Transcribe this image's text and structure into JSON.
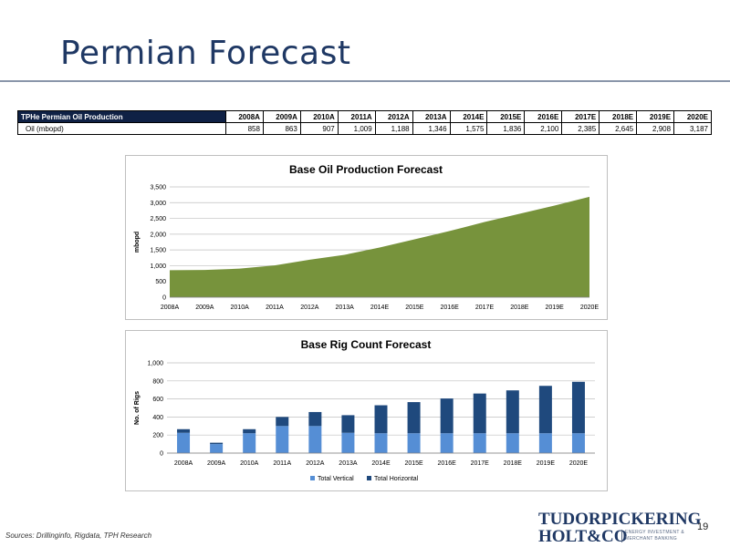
{
  "slide": {
    "title": "Permian Forecast",
    "sources": "Sources: Drillinginfo, Rigdata, TPH Research",
    "page_number": "19",
    "logo": {
      "line1": "TUDORPICKERING",
      "line2": "HOLT&CO",
      "tagline1": "ENERGY INVESTMENT &",
      "tagline2": "MERCHANT BANKING"
    }
  },
  "table": {
    "header_label": "TPHe Permian Oil Production",
    "row_label": "Oil (mbopd)",
    "years": [
      "2008A",
      "2009A",
      "2010A",
      "2011A",
      "2012A",
      "2013A",
      "2014E",
      "2015E",
      "2016E",
      "2017E",
      "2018E",
      "2019E",
      "2020E"
    ],
    "values": [
      "858",
      "863",
      "907",
      "1,009",
      "1,188",
      "1,346",
      "1,575",
      "1,836",
      "2,100",
      "2,385",
      "2,645",
      "2,908",
      "3,187"
    ]
  },
  "colors": {
    "title": "#1f3864",
    "area_fill": "#77933c",
    "vertical_bar": "#558ed5",
    "horizontal_bar": "#1f497d",
    "table_header": "#0f2145"
  },
  "chart_data": [
    {
      "type": "area",
      "title": "Base Oil Production Forecast",
      "xlabel": "",
      "ylabel": "mbopd",
      "categories": [
        "2008A",
        "2009A",
        "2010A",
        "2011A",
        "2012A",
        "2013A",
        "2014E",
        "2015E",
        "2016E",
        "2017E",
        "2018E",
        "2019E",
        "2020E"
      ],
      "values": [
        858,
        863,
        907,
        1009,
        1188,
        1346,
        1575,
        1836,
        2100,
        2385,
        2645,
        2908,
        3187
      ],
      "ylim": [
        0,
        3500
      ],
      "yticks": [
        0,
        500,
        1000,
        1500,
        2000,
        2500,
        3000,
        3500
      ],
      "ytick_labels": [
        "0",
        "500",
        "1,000",
        "1,500",
        "2,000",
        "2,500",
        "3,000",
        "3,500"
      ],
      "grid": true,
      "legend": "none"
    },
    {
      "type": "bar",
      "stacked": true,
      "title": "Base Rig Count Forecast",
      "xlabel": "",
      "ylabel": "No. of Rigs",
      "categories": [
        "2008A",
        "2009A",
        "2010A",
        "2011A",
        "2012A",
        "2013A",
        "2014E",
        "2015E",
        "2016E",
        "2017E",
        "2018E",
        "2019E",
        "2020E"
      ],
      "series": [
        {
          "name": "Total Vertical",
          "values": [
            225,
            100,
            220,
            300,
            300,
            225,
            220,
            220,
            220,
            220,
            220,
            220,
            220
          ]
        },
        {
          "name": "Total Horizontal",
          "values": [
            40,
            15,
            45,
            100,
            155,
            195,
            310,
            345,
            385,
            440,
            475,
            525,
            570
          ]
        }
      ],
      "ylim": [
        0,
        1000
      ],
      "yticks": [
        0,
        200,
        400,
        600,
        800,
        1000
      ],
      "ytick_labels": [
        "0",
        "200",
        "400",
        "600",
        "800",
        "1,000"
      ],
      "grid": true,
      "legend": "bottom"
    }
  ]
}
